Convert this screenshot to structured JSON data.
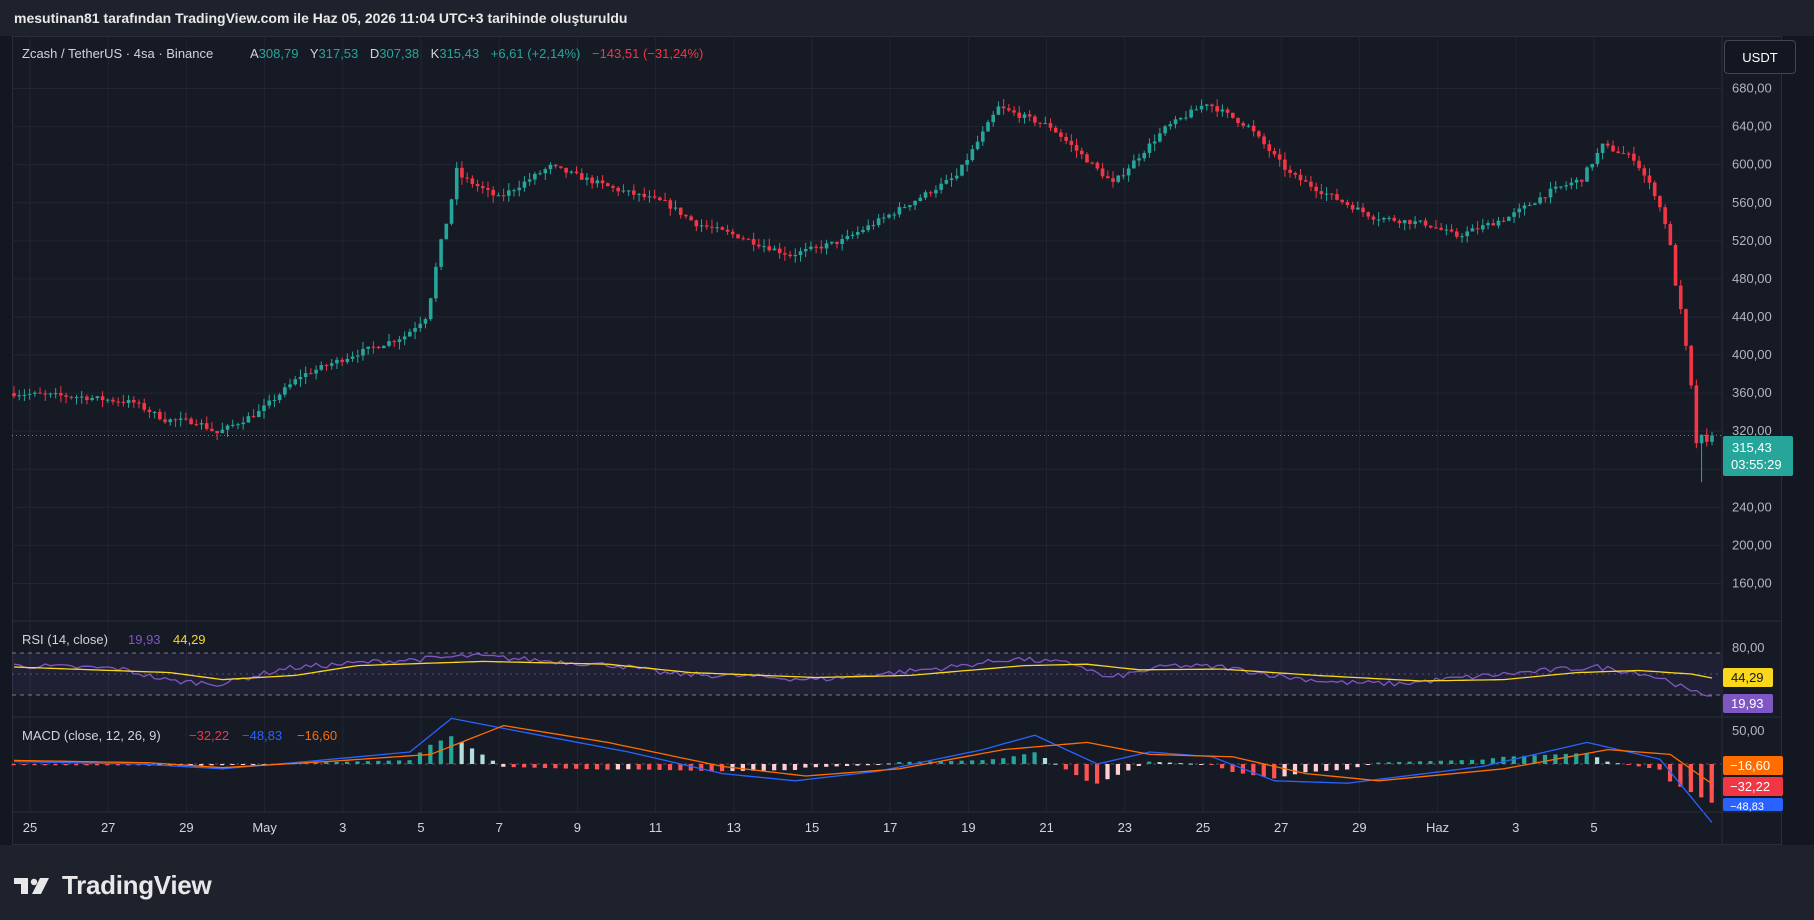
{
  "header": {
    "attribution": "mesutinan81 tarafından TradingView.com ile Haz 05, 2026 11:04 UTC+3 tarihinde oluşturuldu"
  },
  "legend": {
    "symbol": "Zcash / TetherUS · 4sa · Binance",
    "o_label": "A",
    "o_value": "308,79",
    "h_label": "Y",
    "h_value": "317,53",
    "l_label": "D",
    "l_value": "307,38",
    "c_label": "K",
    "c_value": "315,43",
    "change": "+6,61 (+2,14%)",
    "change2": "−143,51 (−31,24%)"
  },
  "currency_button": "USDT",
  "price_label": {
    "price": "315,43",
    "countdown": "03:55:29"
  },
  "rsi": {
    "title": "RSI (14, close)",
    "value": "19,93",
    "ma_value": "44,29",
    "axis_labels": [
      "80,00",
      "50,00"
    ]
  },
  "macd": {
    "title": "MACD (close, 12, 26, 9)",
    "hist_value": "−32,22",
    "macd_value": "−48,83",
    "signal_value": "−16,60",
    "axis_labels": [
      "−16,60",
      "−32,22",
      "−48,83"
    ]
  },
  "footer": {
    "brand": "TradingView"
  },
  "colors": {
    "up": "#26a69a",
    "down": "#f23645",
    "rsi": "#7e57c2",
    "rsi_ma": "#f9d71c",
    "macd": "#2962ff",
    "signal": "#ff6d00",
    "bg": "#161a25"
  },
  "chart_data": {
    "type": "candlestick",
    "price_axis": {
      "ticks": [
        "680,00",
        "640,00",
        "600,00",
        "560,00",
        "520,00",
        "480,00",
        "440,00",
        "400,00",
        "360,00",
        "320,00",
        "280,00",
        "240,00",
        "200,00",
        "160,00"
      ],
      "ylim": [
        130,
        710
      ]
    },
    "time_axis": [
      "25",
      "27",
      "29",
      "May",
      "3",
      "5",
      "7",
      "9",
      "11",
      "13",
      "15",
      "17",
      "19",
      "21",
      "23",
      "25",
      "27",
      "29",
      "Haz",
      "3",
      "5"
    ],
    "last_price": 315.43,
    "price_path": [
      [
        0,
        360
      ],
      [
        14,
        356
      ],
      [
        24,
        350
      ],
      [
        30,
        332
      ],
      [
        36,
        330
      ],
      [
        40,
        318
      ],
      [
        48,
        340
      ],
      [
        56,
        378
      ],
      [
        66,
        400
      ],
      [
        76,
        420
      ],
      [
        80,
        440
      ],
      [
        86,
        590
      ],
      [
        94,
        565
      ],
      [
        104,
        598
      ],
      [
        116,
        575
      ],
      [
        126,
        560
      ],
      [
        132,
        538
      ],
      [
        140,
        525
      ],
      [
        150,
        505
      ],
      [
        160,
        520
      ],
      [
        170,
        550
      ],
      [
        182,
        588
      ],
      [
        190,
        660
      ],
      [
        200,
        640
      ],
      [
        206,
        610
      ],
      [
        212,
        580
      ],
      [
        222,
        638
      ],
      [
        230,
        665
      ],
      [
        238,
        640
      ],
      [
        246,
        590
      ],
      [
        252,
        572
      ],
      [
        262,
        545
      ],
      [
        272,
        538
      ],
      [
        278,
        525
      ],
      [
        288,
        545
      ],
      [
        296,
        572
      ],
      [
        302,
        585
      ],
      [
        306,
        620
      ],
      [
        312,
        607
      ],
      [
        316,
        570
      ],
      [
        318,
        540
      ],
      [
        320,
        480
      ],
      [
        322,
        400
      ],
      [
        324,
        312
      ],
      [
        326,
        315
      ]
    ],
    "candle_count": 327,
    "rsi_series": [
      [
        0,
        62
      ],
      [
        20,
        58
      ],
      [
        30,
        40
      ],
      [
        40,
        36
      ],
      [
        52,
        58
      ],
      [
        68,
        67
      ],
      [
        80,
        72
      ],
      [
        88,
        76
      ],
      [
        100,
        70
      ],
      [
        116,
        62
      ],
      [
        126,
        50
      ],
      [
        140,
        47
      ],
      [
        154,
        42
      ],
      [
        166,
        50
      ],
      [
        180,
        60
      ],
      [
        192,
        72
      ],
      [
        204,
        64
      ],
      [
        210,
        44
      ],
      [
        222,
        62
      ],
      [
        232,
        60
      ],
      [
        244,
        46
      ],
      [
        254,
        38
      ],
      [
        266,
        36
      ],
      [
        280,
        46
      ],
      [
        296,
        56
      ],
      [
        304,
        60
      ],
      [
        312,
        52
      ],
      [
        318,
        40
      ],
      [
        322,
        24
      ],
      [
        326,
        19.93
      ]
    ],
    "rsi_ma_series": [
      [
        0,
        60
      ],
      [
        30,
        52
      ],
      [
        40,
        42
      ],
      [
        54,
        48
      ],
      [
        66,
        62
      ],
      [
        90,
        68
      ],
      [
        114,
        64
      ],
      [
        130,
        52
      ],
      [
        154,
        45
      ],
      [
        172,
        48
      ],
      [
        194,
        62
      ],
      [
        206,
        64
      ],
      [
        216,
        56
      ],
      [
        232,
        57
      ],
      [
        250,
        48
      ],
      [
        270,
        40
      ],
      [
        286,
        42
      ],
      [
        300,
        52
      ],
      [
        312,
        55
      ],
      [
        322,
        50
      ],
      [
        326,
        44.29
      ]
    ],
    "macd_series": [
      [
        0,
        2
      ],
      [
        24,
        0
      ],
      [
        40,
        -4
      ],
      [
        56,
        2
      ],
      [
        76,
        10
      ],
      [
        84,
        38
      ],
      [
        96,
        28
      ],
      [
        118,
        10
      ],
      [
        136,
        -8
      ],
      [
        150,
        -14
      ],
      [
        166,
        -6
      ],
      [
        186,
        12
      ],
      [
        196,
        24
      ],
      [
        208,
        0
      ],
      [
        218,
        10
      ],
      [
        230,
        6
      ],
      [
        242,
        -14
      ],
      [
        256,
        -16
      ],
      [
        282,
        -2
      ],
      [
        302,
        18
      ],
      [
        316,
        4
      ],
      [
        326,
        -48.83
      ]
    ],
    "signal_series": [
      [
        0,
        3
      ],
      [
        26,
        1
      ],
      [
        40,
        -3
      ],
      [
        60,
        2
      ],
      [
        80,
        8
      ],
      [
        94,
        32
      ],
      [
        114,
        18
      ],
      [
        136,
        -2
      ],
      [
        152,
        -10
      ],
      [
        170,
        -4
      ],
      [
        190,
        12
      ],
      [
        206,
        18
      ],
      [
        218,
        8
      ],
      [
        234,
        6
      ],
      [
        248,
        -8
      ],
      [
        262,
        -14
      ],
      [
        286,
        -4
      ],
      [
        306,
        12
      ],
      [
        318,
        8
      ],
      [
        326,
        -16.6
      ]
    ],
    "macd_hist_last": -32.22
  }
}
